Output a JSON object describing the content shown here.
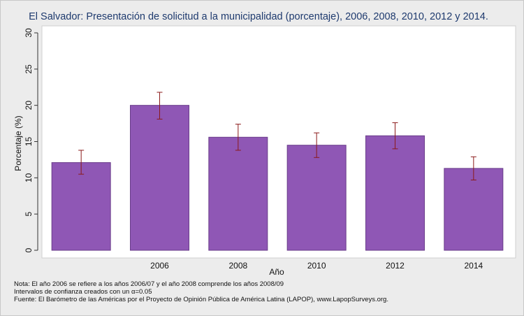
{
  "chart_data": {
    "type": "bar",
    "title": "El Salvador: Presentación de solicitud a la municipalidad (porcentaje), 2006, 2008, 2010, 2012 y 2014.",
    "xlabel": "Año",
    "ylabel": "Porcentaje (%)",
    "ylim": [
      0,
      30
    ],
    "yticks": [
      "0",
      "5",
      "10",
      "15",
      "20",
      "25",
      "30"
    ],
    "categories": [
      "",
      "2006",
      "2008",
      "2010",
      "2012",
      "2014"
    ],
    "values": [
      12.1,
      20.0,
      15.6,
      14.5,
      15.8,
      11.3
    ],
    "ci_low": [
      10.5,
      18.1,
      13.8,
      12.8,
      14.0,
      9.7
    ],
    "ci_high": [
      13.8,
      21.8,
      17.4,
      16.2,
      17.6,
      12.9
    ],
    "grid": false,
    "bar_color": "#8f57b5",
    "bar_edge_color": "#6a3d8a",
    "errorbar_color": "#8b1a1a"
  },
  "notes": {
    "line1": "Nota: El año 2006 se refiere a los años 2006/07 y el año 2008 comprende los años 2008/09",
    "line2_prefix": "Intervalos de confianza creados con un ",
    "line2_alpha": "α",
    "line2_suffix": "=0.05",
    "line3": "Fuente: El Barómetro de las Américas por el Proyecto de Opinión Pública de América Latina (LAPOP), www.LapopSurveys.org."
  }
}
